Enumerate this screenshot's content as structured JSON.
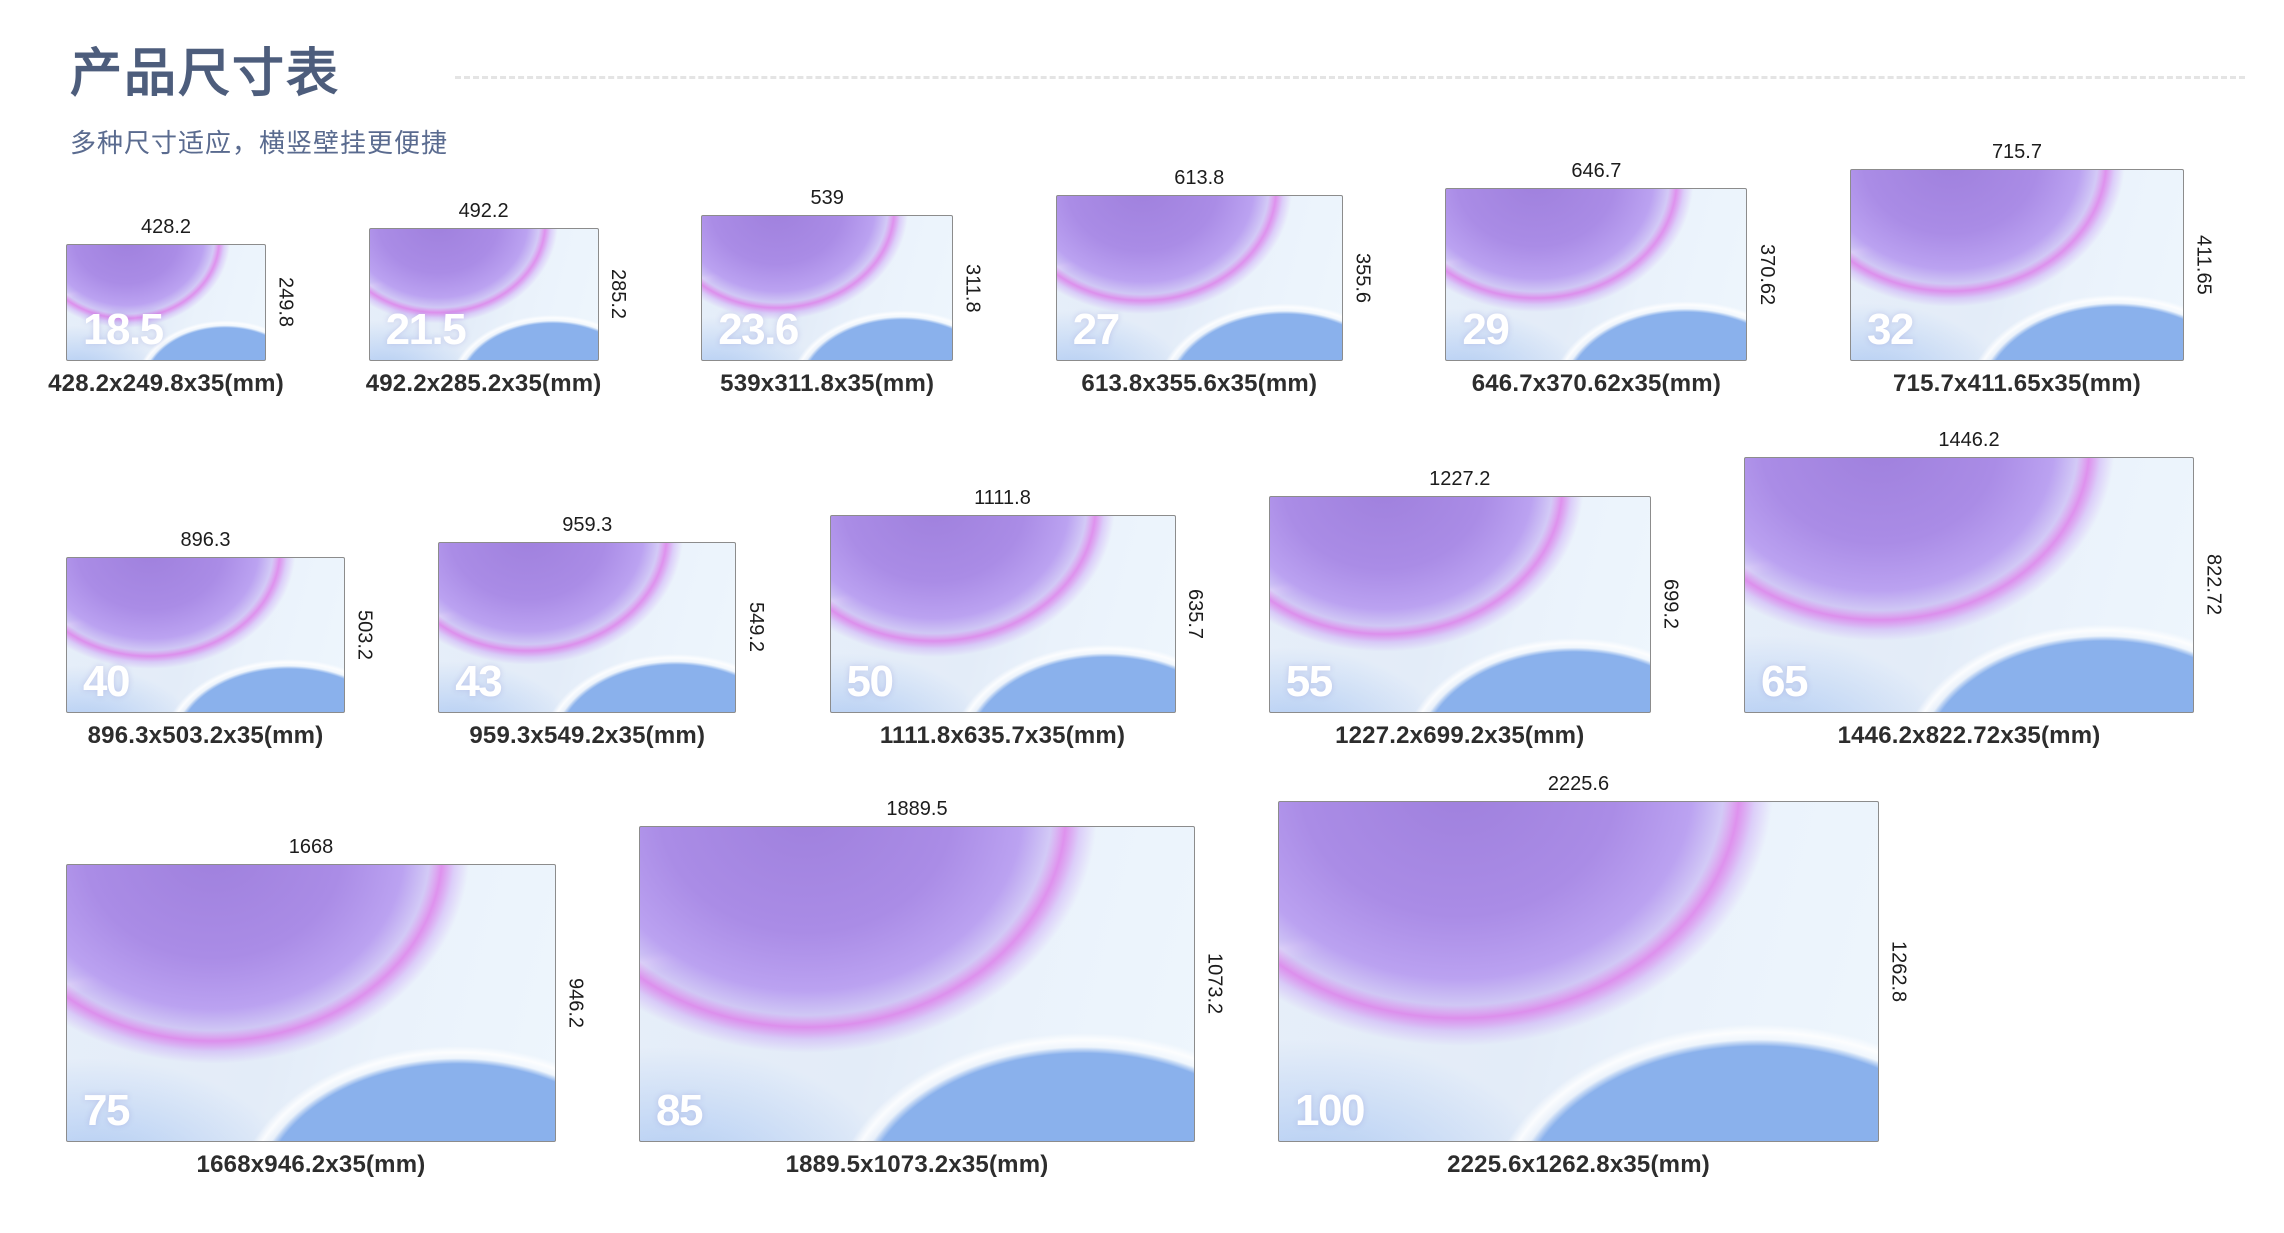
{
  "page": {
    "title": "产品尺寸表",
    "subtitle": "多种尺寸适应，横竖壁挂更便捷"
  },
  "colors": {
    "title_text": "#4d5d7c",
    "subtitle_text": "#5a6b8f",
    "caption_text": "#2d2d2d",
    "dimension_text": "#1c1c1c",
    "screen_purple": "#aa8ce6",
    "screen_pink_streak": "#de52e4",
    "screen_blue_circle": "#8ab1ec",
    "screen_base": "#e6eef9",
    "divider": "#e4e4e4"
  },
  "products": [
    {
      "size": "18.5",
      "width_mm": "428.2",
      "height_mm": "249.8",
      "depth_mm": "35",
      "caption": "428.2x249.8x35(mm)",
      "row": 1
    },
    {
      "size": "21.5",
      "width_mm": "492.2",
      "height_mm": "285.2",
      "depth_mm": "35",
      "caption": "492.2x285.2x35(mm)",
      "row": 1
    },
    {
      "size": "23.6",
      "width_mm": "539",
      "height_mm": "311.8",
      "depth_mm": "35",
      "caption": "539x311.8x35(mm)",
      "row": 1
    },
    {
      "size": "27",
      "width_mm": "613.8",
      "height_mm": "355.6",
      "depth_mm": "35",
      "caption": "613.8x355.6x35(mm)",
      "row": 1
    },
    {
      "size": "29",
      "width_mm": "646.7",
      "height_mm": "370.62",
      "depth_mm": "35",
      "caption": "646.7x370.62x35(mm)",
      "row": 1
    },
    {
      "size": "32",
      "width_mm": "715.7",
      "height_mm": "411.65",
      "depth_mm": "35",
      "caption": "715.7x411.65x35(mm)",
      "row": 1
    },
    {
      "size": "40",
      "width_mm": "896.3",
      "height_mm": "503.2",
      "depth_mm": "35",
      "caption": "896.3x503.2x35(mm)",
      "row": 2
    },
    {
      "size": "43",
      "width_mm": "959.3",
      "height_mm": "549.2",
      "depth_mm": "35",
      "caption": "959.3x549.2x35(mm)",
      "row": 2
    },
    {
      "size": "50",
      "width_mm": "1111.8",
      "height_mm": "635.7",
      "depth_mm": "35",
      "caption": "1111.8x635.7x35(mm)",
      "row": 2
    },
    {
      "size": "55",
      "width_mm": "1227.2",
      "height_mm": "699.2",
      "depth_mm": "35",
      "caption": "1227.2x699.2x35(mm)",
      "row": 2
    },
    {
      "size": "65",
      "width_mm": "1446.2",
      "height_mm": "822.72",
      "depth_mm": "35",
      "caption": "1446.2x822.72x35(mm)",
      "row": 2
    },
    {
      "size": "75",
      "width_mm": "1668",
      "height_mm": "946.2",
      "depth_mm": "35",
      "caption": "1668x946.2x35(mm)",
      "row": 3
    },
    {
      "size": "85",
      "width_mm": "1889.5",
      "height_mm": "1073.2",
      "depth_mm": "35",
      "caption": "1889.5x1073.2x35(mm)",
      "row": 3
    },
    {
      "size": "100",
      "width_mm": "2225.6",
      "height_mm": "1262.8",
      "depth_mm": "35",
      "caption": "2225.6x1262.8x35(mm)",
      "row": 3
    }
  ]
}
